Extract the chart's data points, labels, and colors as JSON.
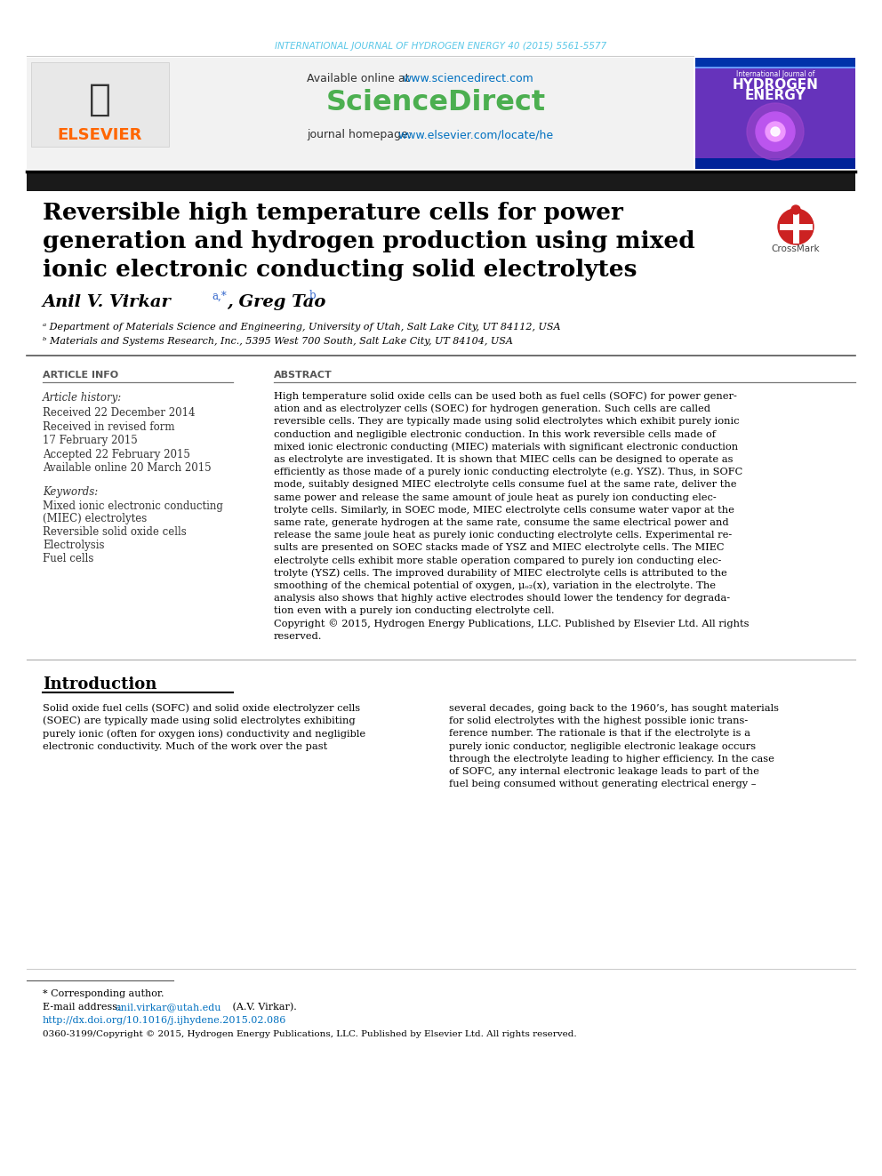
{
  "bg_color": "#ffffff",
  "journal_ref": "INTERNATIONAL JOURNAL OF HYDROGEN ENERGY 40 (2015) 5561-5577",
  "journal_ref_color": "#5bc8e8",
  "available_online": "Available online at ",
  "sciencedirect_url": "www.sciencedirect.com",
  "sciencedirect_url_color": "#0070c0",
  "sciencedirect_text": "ScienceDirect",
  "sciencedirect_color": "#4caf50",
  "journal_homepage": "journal homepage: ",
  "journal_homepage_url": "www.elsevier.com/locate/he",
  "journal_homepage_url_color": "#0070c0",
  "elsevier_color": "#FF6600",
  "black_bar_color": "#1a1a1a",
  "affil_a": "ᵃ Department of Materials Science and Engineering, University of Utah, Salt Lake City, UT 84112, USA",
  "affil_b": "ᵇ Materials and Systems Research, Inc., 5395 West 700 South, Salt Lake City, UT 84104, USA",
  "article_info_header": "ARTICLE INFO",
  "abstract_header": "ABSTRACT",
  "article_history": "Article history:",
  "received1": "Received 22 December 2014",
  "accepted": "Accepted 22 February 2015",
  "available": "Available online 20 March 2015",
  "keywords_header": "Keywords:",
  "keyword2": "Reversible solid oxide cells",
  "keyword3": "Electrolysis",
  "keyword4": "Fuel cells",
  "intro_header": "Introduction",
  "footnote_star": "* Corresponding author.",
  "footnote_email": "E-mail address: ",
  "footnote_email_addr": "anil.virkar@utah.edu",
  "footnote_email_addr_color": "#0070c0",
  "footnote_email_rest": " (A.V. Virkar).",
  "footnote_doi": "http://dx.doi.org/10.1016/j.ijhydene.2015.02.086",
  "footnote_doi_color": "#0070c0",
  "footnote_issn": "0360-3199/Copyright © 2015, Hydrogen Energy Publications, LLC. Published by Elsevier Ltd. All rights reserved.",
  "abstract_lines": [
    "High temperature solid oxide cells can be used both as fuel cells (SOFC) for power gener-",
    "ation and as electrolyzer cells (SOEC) for hydrogen generation. Such cells are called",
    "reversible cells. They are typically made using solid electrolytes which exhibit purely ionic",
    "conduction and negligible electronic conduction. In this work reversible cells made of",
    "mixed ionic electronic conducting (MIEC) materials with significant electronic conduction",
    "as electrolyte are investigated. It is shown that MIEC cells can be designed to operate as",
    "efficiently as those made of a purely ionic conducting electrolyte (e.g. YSZ). Thus, in SOFC",
    "mode, suitably designed MIEC electrolyte cells consume fuel at the same rate, deliver the",
    "same power and release the same amount of joule heat as purely ion conducting elec-",
    "trolyte cells. Similarly, in SOEC mode, MIEC electrolyte cells consume water vapor at the",
    "same rate, generate hydrogen at the same rate, consume the same electrical power and",
    "release the same joule heat as purely ionic conducting electrolyte cells. Experimental re-",
    "sults are presented on SOEC stacks made of YSZ and MIEC electrolyte cells. The MIEC",
    "electrolyte cells exhibit more stable operation compared to purely ion conducting elec-",
    "trolyte (YSZ) cells. The improved durability of MIEC electrolyte cells is attributed to the",
    "smoothing of the chemical potential of oxygen, μₒ₂(x), variation in the electrolyte. The",
    "analysis also shows that highly active electrodes should lower the tendency for degrada-",
    "tion even with a purely ion conducting electrolyte cell.",
    "Copyright © 2015, Hydrogen Energy Publications, LLC. Published by Elsevier Ltd. All rights",
    "reserved."
  ],
  "intro_left": [
    "Solid oxide fuel cells (SOFC) and solid oxide electrolyzer cells",
    "(SOEC) are typically made using solid electrolytes exhibiting",
    "purely ionic (often for oxygen ions) conductivity and negligible",
    "electronic conductivity. Much of the work over the past"
  ],
  "intro_right": [
    "several decades, going back to the 1960’s, has sought materials",
    "for solid electrolytes with the highest possible ionic trans-",
    "ference number. The rationale is that if the electrolyte is a",
    "purely ionic conductor, negligible electronic leakage occurs",
    "through the electrolyte leading to higher efficiency. In the case",
    "of SOFC, any internal electronic leakage leads to part of the",
    "fuel being consumed without generating electrical energy –"
  ]
}
